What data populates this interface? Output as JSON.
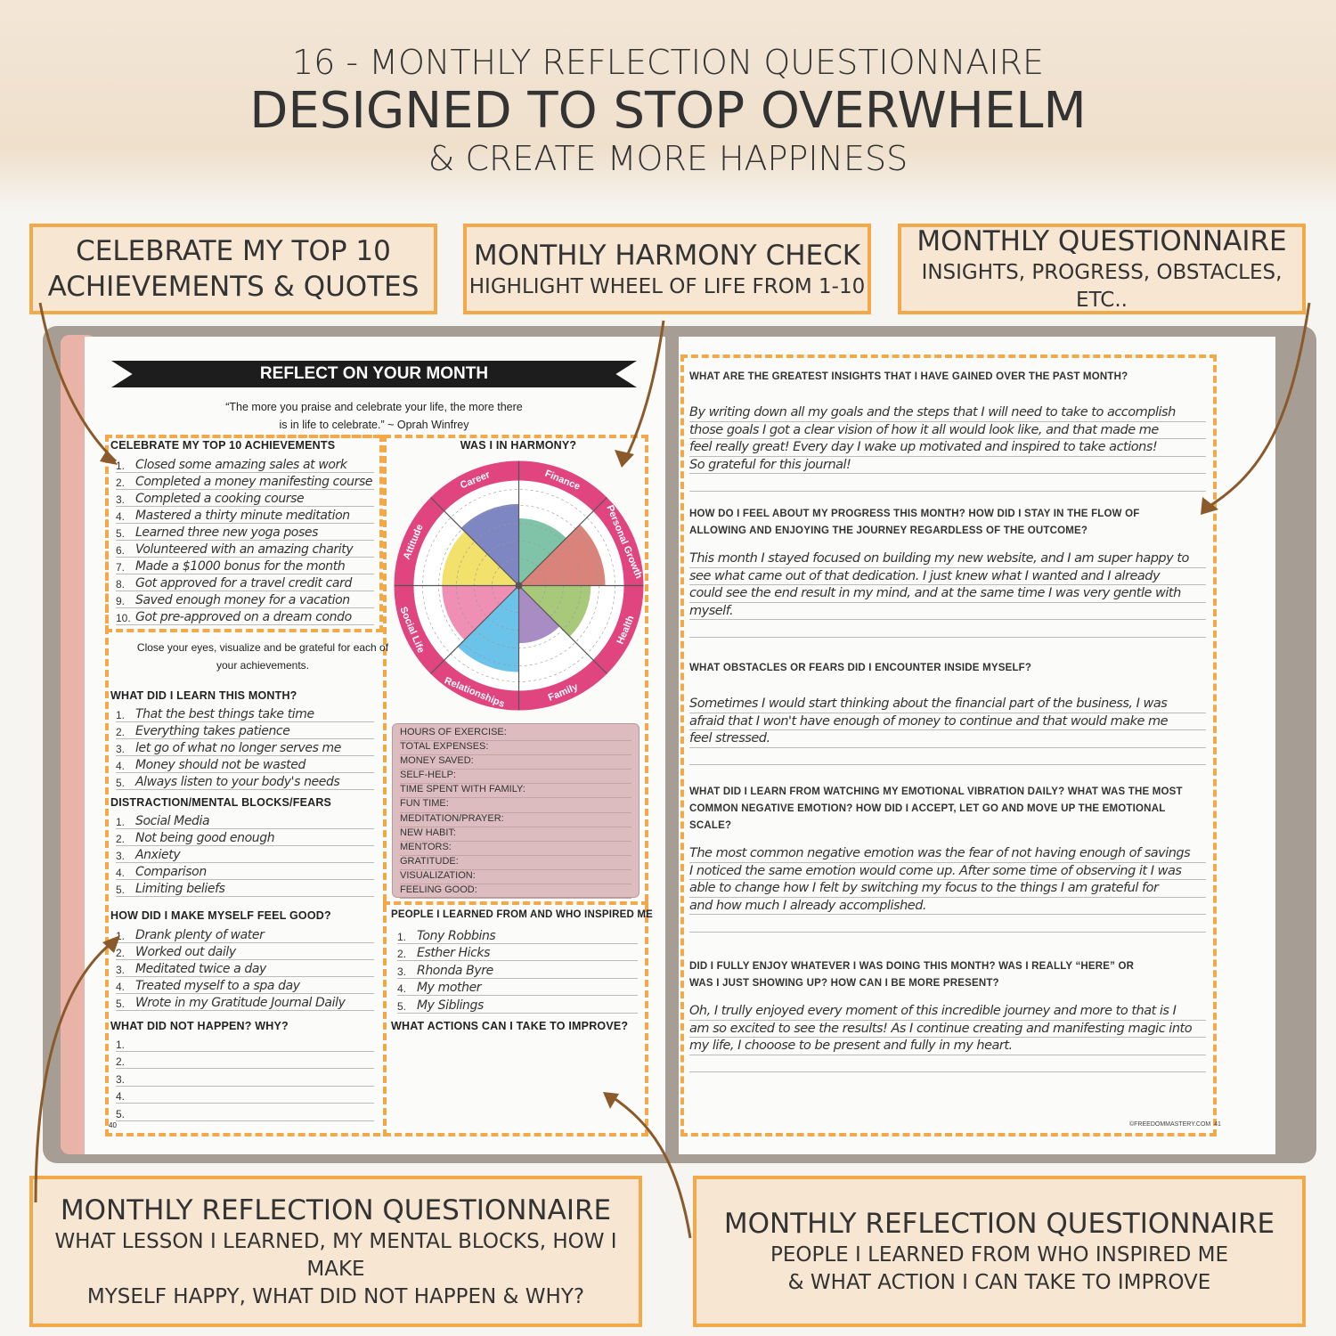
{
  "header": {
    "line1": "16 - MONTHLY REFLECTION QUESTIONNAIRE",
    "line2": "DESIGNED TO STOP OVERWHELM",
    "line3": "& CREATE MORE HAPPINESS"
  },
  "callouts": {
    "top_left": {
      "title": "CELEBRATE MY TOP 10",
      "title2": "ACHIEVEMENTS & QUOTES"
    },
    "top_mid": {
      "title": "MONTHLY HARMONY CHECK",
      "sub": "HIGHLIGHT WHEEL OF LIFE FROM 1-10"
    },
    "top_right": {
      "title": "MONTHLY QUESTIONNAIRE",
      "sub": "INSIGHTS, PROGRESS, OBSTACLES, ETC.."
    },
    "bottom_left": {
      "title": "MONTHLY REFLECTION QUESTIONNAIRE",
      "sub1": "WHAT LESSON I LEARNED, MY MENTAL BLOCKS, HOW I MAKE",
      "sub2": "MYSELF HAPPY, WHAT DID NOT HAPPEN & WHY?"
    },
    "bottom_right": {
      "title": "MONTHLY REFLECTION QUESTIONNAIRE",
      "sub1": "PEOPLE I LEARNED FROM WHO INSPIRED ME",
      "sub2": "& WHAT ACTION I CAN TAKE TO IMPROVE"
    }
  },
  "left_page": {
    "banner": "REFLECT ON YOUR MONTH",
    "quote1": "“The more you praise and celebrate your life, the more there",
    "quote2": "is in life to celebrate.” ~ Oprah Winfrey",
    "achievements": {
      "title": "CELEBRATE MY TOP 10 ACHIEVEMENTS",
      "items": [
        "Closed some amazing sales at work",
        "Completed a money manifesting course",
        "Completed a cooking course",
        "Mastered a thirty minute meditation",
        "Learned three new yoga poses",
        "Volunteered with an amazing charity",
        "Made a $1000 bonus for the month",
        "Got approved for a travel credit card",
        "Saved enough money for a vacation",
        "Got pre-approved on a dream condo"
      ]
    },
    "visualize1": "Close your eyes, visualize and be grateful for each of",
    "visualize2": "your achievements.",
    "learn": {
      "title": "WHAT DID I LEARN THIS MONTH?",
      "items": [
        "That the best things take time",
        "Everything takes patience",
        "let go of what no longer serves me",
        "Money should not be wasted",
        "Always listen to your body's needs"
      ]
    },
    "blocks": {
      "title": "DISTRACTION/MENTAL BLOCKS/FEARS",
      "items": [
        "Social Media",
        "Not being good enough",
        "Anxiety",
        "Comparison",
        "Limiting beliefs"
      ]
    },
    "feel_good": {
      "title": "HOW DID I MAKE MYSELF FEEL GOOD?",
      "items": [
        "Drank plenty of water",
        "Worked out daily",
        "Meditated twice a day",
        "Treated myself to a spa day",
        "Wrote in my Gratitude Journal Daily"
      ]
    },
    "not_happen": {
      "title": "WHAT DID NOT HAPPEN?  WHY?",
      "items": [
        "",
        "",
        "",
        "",
        ""
      ]
    },
    "harmony": {
      "title": "WAS I IN HARMONY?"
    },
    "tracker": [
      "HOURS OF EXERCISE:",
      "TOTAL EXPENSES:",
      "MONEY SAVED:",
      "SELF-HELP:",
      "TIME SPENT WITH FAMILY:",
      "FUN TIME:",
      "MEDITATION/PRAYER:",
      "NEW HABIT:",
      "MENTORS:",
      "GRATITUDE:",
      "VISUALIZATION:",
      "FEELING GOOD:"
    ],
    "people": {
      "title": "PEOPLE I LEARNED FROM AND WHO INSPIRED ME",
      "items": [
        "Tony Robbins",
        "Esther Hicks",
        "Rhonda Byre",
        "My mother",
        "My Siblings"
      ]
    },
    "actions": {
      "title": "WHAT ACTIONS CAN I TAKE TO IMPROVE?"
    },
    "page_number": "40"
  },
  "chart_data": {
    "type": "radial-bar",
    "title": "WAS I IN HARMONY?",
    "rlim": [
      0,
      10
    ],
    "tick_labels": [
      "5",
      "10"
    ],
    "categories": [
      "Finance",
      "Personal Growth",
      "Health",
      "Family",
      "Relationships",
      "Social Life",
      "Attitude",
      "Career"
    ],
    "values": [
      7,
      9,
      7.5,
      6,
      9,
      8,
      8,
      8.5
    ],
    "colors": [
      "#7fc4a8",
      "#d9837a",
      "#a9c97a",
      "#a98cc4",
      "#6cc3ea",
      "#ee8fb3",
      "#f2e16a",
      "#7f87c2"
    ],
    "ring_color": "#e0457f"
  },
  "right_page": {
    "questions": [
      {
        "q": [
          "WHAT ARE THE GREATEST INSIGHTS THAT I HAVE GAINED OVER THE PAST MONTH?"
        ],
        "a": [
          "By writing down all my goals and the steps that I will need to take to accomplish",
          "those goals I got a clear vision of how it all would look like, and that made me",
          "feel really great! Every day I wake up motivated and inspired to take actions!",
          "So grateful for this journal!"
        ]
      },
      {
        "q": [
          "HOW DO I FEEL ABOUT MY PROGRESS THIS MONTH? HOW DID I STAY IN THE FLOW OF",
          "ALLOWING AND ENJOYING THE JOURNEY REGARDLESS OF THE OUTCOME?"
        ],
        "a": [
          "This month I stayed focused on building my new website, and I am super happy to",
          "see what came out of that dedication. I just knew what I wanted and I already",
          "could see the end result in my mind, and at the same time I was very gentle with",
          "myself."
        ]
      },
      {
        "q": [
          "WHAT OBSTACLES OR FEARS DID I ENCOUNTER INSIDE MYSELF?"
        ],
        "a": [
          "Sometimes I would start thinking about the financial part of the business, I was",
          "afraid that I won't have enough of money to continue and that would make me",
          "feel stressed."
        ]
      },
      {
        "q": [
          "WHAT DID I LEARN FROM WATCHING MY EMOTIONAL VIBRATION DAILY? WHAT WAS THE MOST",
          "COMMON NEGATIVE EMOTION? HOW DID I ACCEPT, LET GO AND MOVE UP THE EMOTIONAL",
          "SCALE?"
        ],
        "a": [
          "The most common negative emotion was the fear of not having enough of savings",
          "I noticed the same emotion would come up. After some time of observing it I was",
          "able to change how I felt by switching my focus to the things I am grateful for",
          "and how much I already accomplished."
        ]
      },
      {
        "q": [
          "DID I FULLY ENJOY WHATEVER I WAS DOING THIS MONTH? WAS I REALLY “HERE” OR",
          "WAS I JUST SHOWING UP? HOW CAN I BE MORE PRESENT?"
        ],
        "a": [
          "Oh, I trully enjoyed every moment of this incredible journey and more to that is I",
          "am so excited to see the results! As I continue creating and manifesting magic into",
          "my life, I chooose to be present and fully in my heart."
        ]
      }
    ],
    "footer": "©FREEDOMMASTERY.COM",
    "page_number": "41"
  }
}
